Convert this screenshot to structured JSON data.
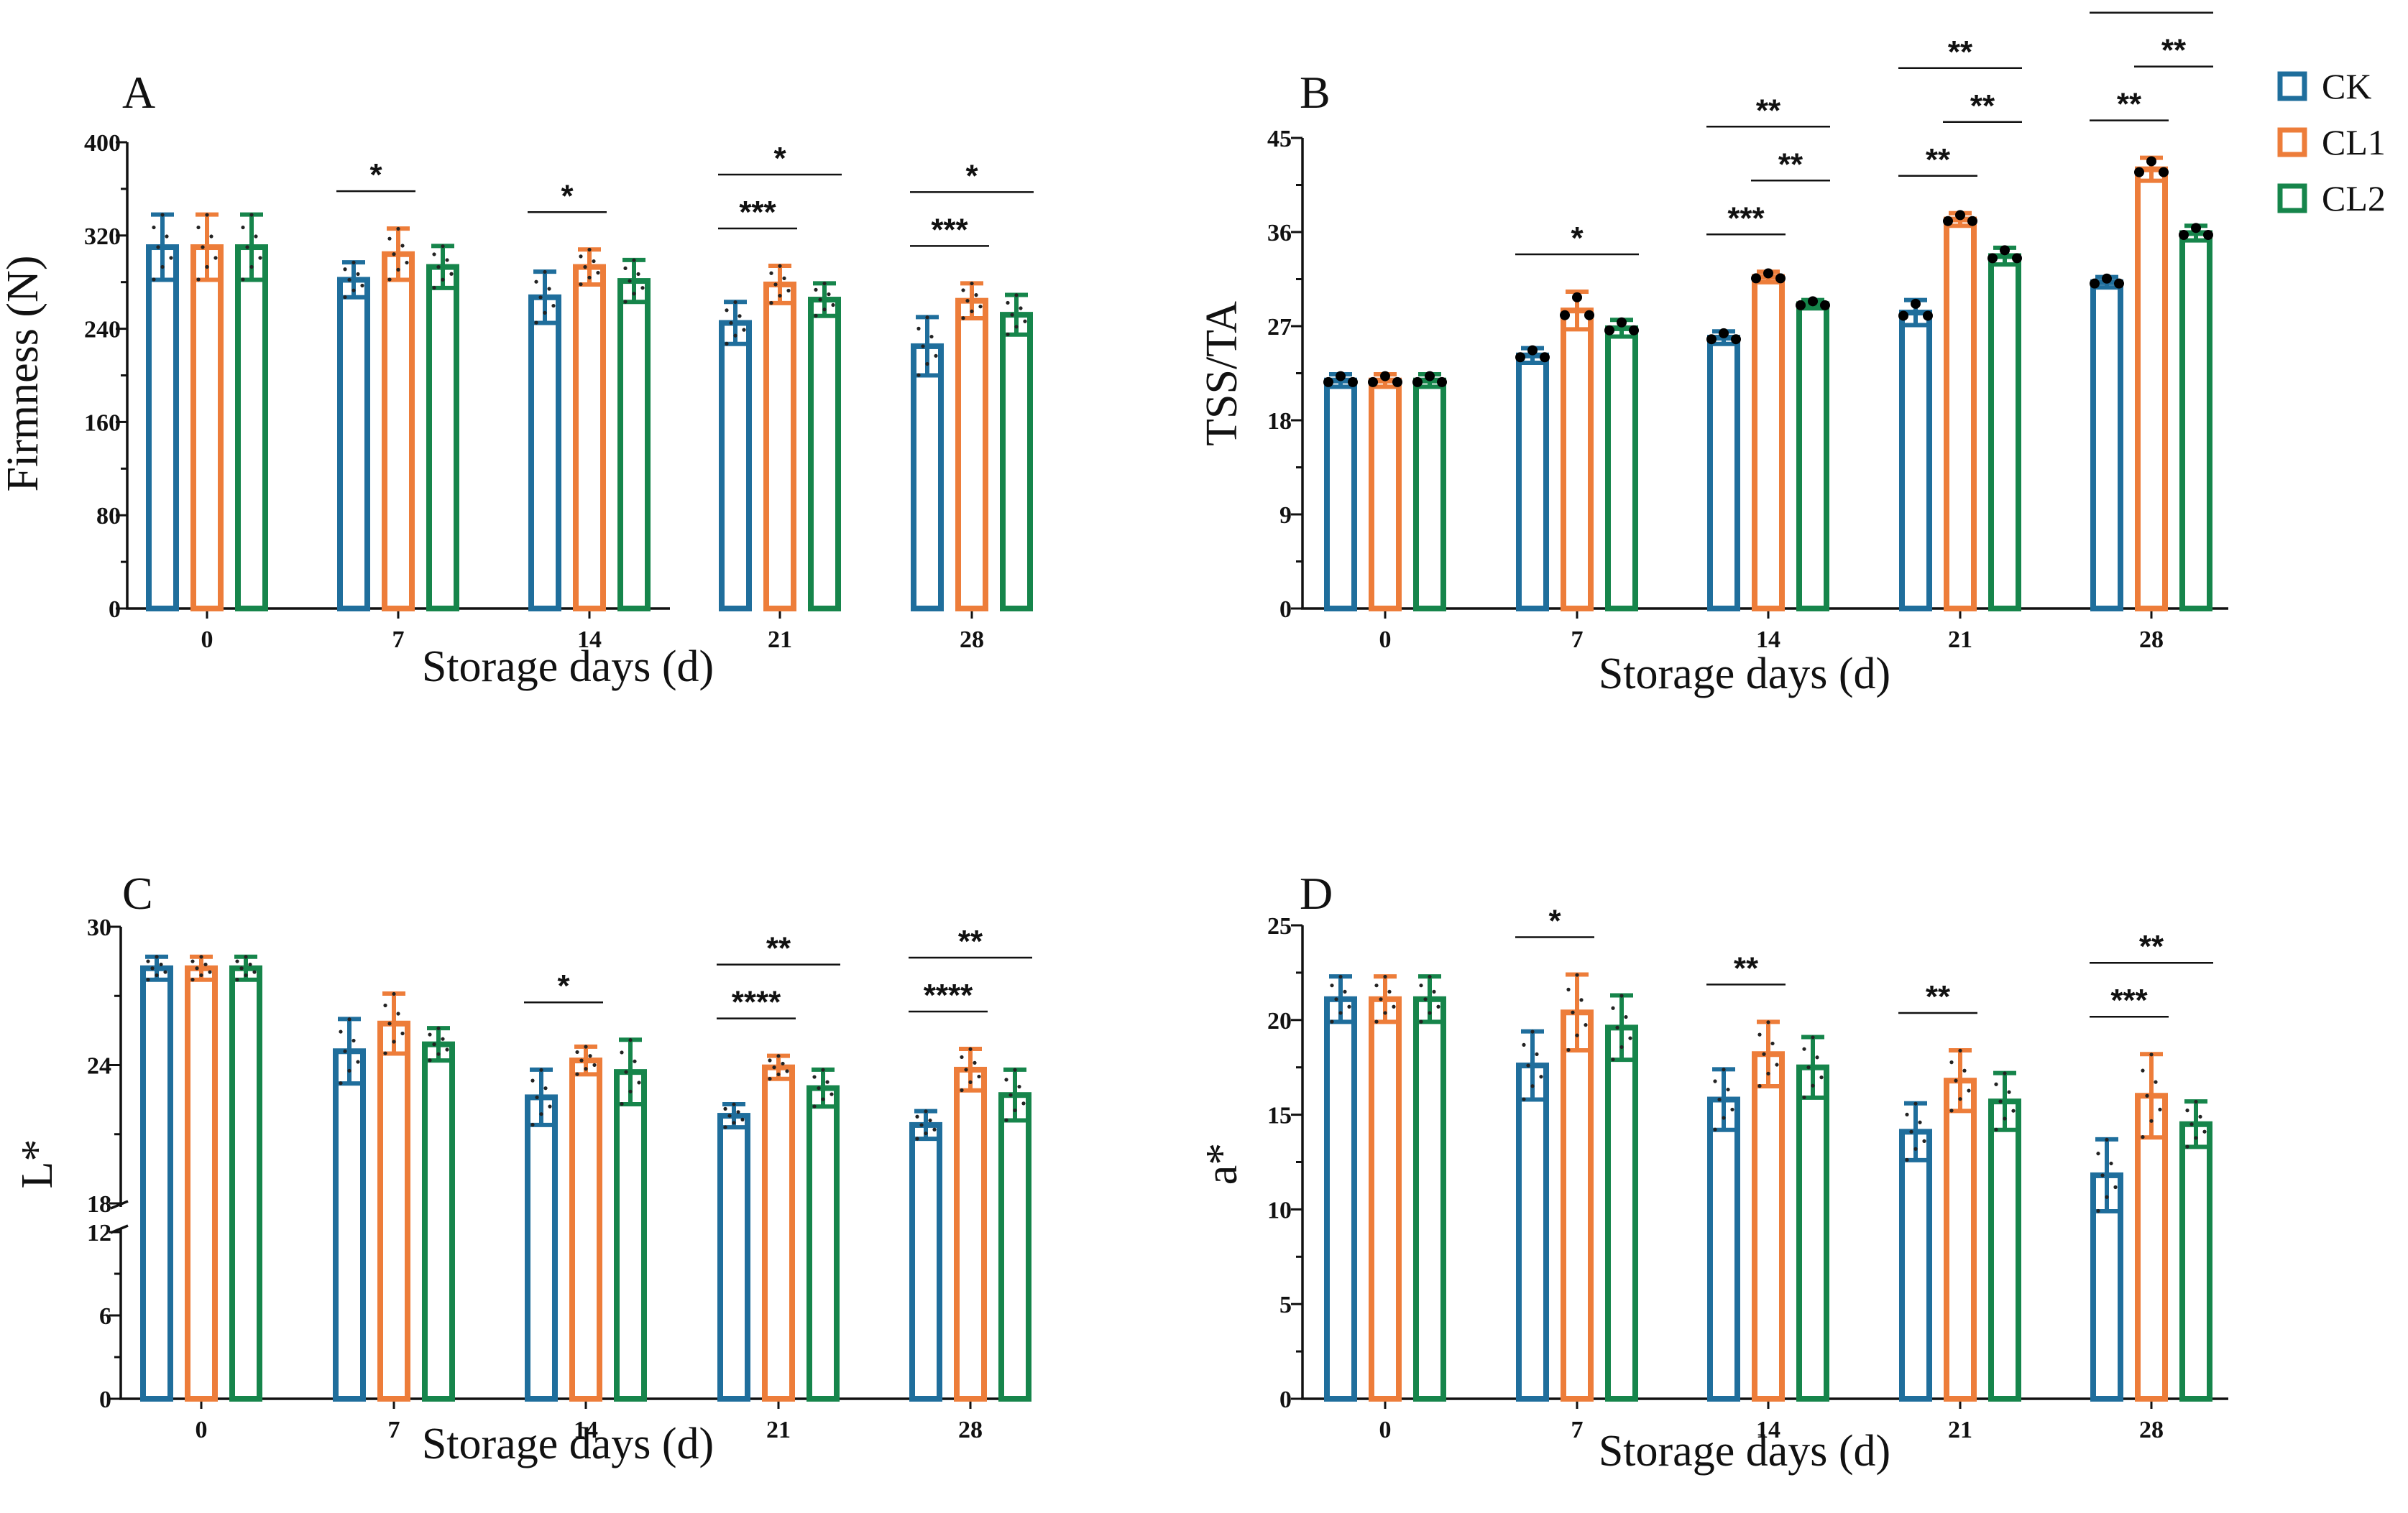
{
  "legend": [
    {
      "label": "CK",
      "color": "#1F6E9C"
    },
    {
      "label": "CL1",
      "color": "#ED7D3A"
    },
    {
      "label": "CL2",
      "color": "#16854B"
    }
  ],
  "chart_data": [
    {
      "panel": "A",
      "type": "bar",
      "xlabel": "Storage days (d)",
      "ylabel": "Firmness (N)",
      "categories": [
        "0",
        "7",
        "14",
        "21",
        "28"
      ],
      "ylim": [
        0,
        400
      ],
      "yticks": [
        0,
        80,
        160,
        240,
        320,
        400
      ],
      "series": [
        {
          "name": "CK",
          "values": [
            310,
            282,
            267,
            245,
            225
          ],
          "errors": [
            28,
            15,
            22,
            18,
            25
          ]
        },
        {
          "name": "CL1",
          "values": [
            310,
            304,
            293,
            278,
            264
          ],
          "errors": [
            28,
            22,
            15,
            16,
            15
          ]
        },
        {
          "name": "CL2",
          "values": [
            310,
            293,
            281,
            265,
            252
          ],
          "errors": [
            28,
            18,
            18,
            14,
            17
          ]
        }
      ],
      "significance": [
        {
          "label": "*",
          "from": 0,
          "to": 1,
          "cat": 1,
          "tier": 0
        },
        {
          "label": "*",
          "from": 0,
          "to": 1,
          "cat": 2,
          "tier": 0
        },
        {
          "label": "***",
          "from": 0,
          "to": 1,
          "cat": 3,
          "tier": 0
        },
        {
          "label": "*",
          "from": 0,
          "to": 2,
          "cat": 3,
          "tier": 1
        },
        {
          "label": "***",
          "from": 0,
          "to": 1,
          "cat": 4,
          "tier": 0
        },
        {
          "label": "*",
          "from": 0,
          "to": 2,
          "cat": 4,
          "tier": 1
        }
      ]
    },
    {
      "panel": "B",
      "type": "bar",
      "xlabel": "Storage days (d)",
      "ylabel": "TSS/TA",
      "categories": [
        "0",
        "7",
        "14",
        "21",
        "28"
      ],
      "ylim": [
        0,
        45
      ],
      "yticks": [
        0,
        9,
        18,
        27,
        36,
        45
      ],
      "series": [
        {
          "name": "CK",
          "values": [
            21.8,
            24.2,
            25.9,
            28.3,
            31.2
          ],
          "errors": [
            0.6,
            0.7,
            0.6,
            1.2,
            0.5
          ]
        },
        {
          "name": "CL1",
          "values": [
            21.8,
            28.5,
            31.7,
            37.2,
            42.0
          ],
          "errors": [
            0.6,
            1.8,
            0.5,
            0.6,
            1.1
          ]
        },
        {
          "name": "CL2",
          "values": [
            21.8,
            26.8,
            29.1,
            33.7,
            35.9
          ],
          "errors": [
            0.6,
            0.8,
            0.4,
            0.8,
            0.7
          ]
        }
      ],
      "significance": [
        {
          "label": "*",
          "from": 0,
          "to": 2,
          "cat": 1,
          "tier": 0
        },
        {
          "label": "***",
          "from": 0,
          "to": 1,
          "cat": 2,
          "tier": 0
        },
        {
          "label": "**",
          "from": 1,
          "to": 2,
          "cat": 2,
          "tier": 1
        },
        {
          "label": "**",
          "from": 0,
          "to": 2,
          "cat": 2,
          "tier": 2
        },
        {
          "label": "**",
          "from": 0,
          "to": 1,
          "cat": 3,
          "tier": 0
        },
        {
          "label": "**",
          "from": 1,
          "to": 2,
          "cat": 3,
          "tier": 1
        },
        {
          "label": "**",
          "from": 0,
          "to": 2,
          "cat": 3,
          "tier": 2
        },
        {
          "label": "**",
          "from": 0,
          "to": 1,
          "cat": 4,
          "tier": 0
        },
        {
          "label": "**",
          "from": 1,
          "to": 2,
          "cat": 4,
          "tier": 1
        },
        {
          "label": "**",
          "from": 0,
          "to": 2,
          "cat": 4,
          "tier": 2
        }
      ]
    },
    {
      "panel": "C",
      "type": "bar",
      "xlabel": "Storage days (d)",
      "ylabel": "L*",
      "categories": [
        "0",
        "7",
        "14",
        "21",
        "28"
      ],
      "axis_break": {
        "lower": [
          0,
          12
        ],
        "upper": [
          18,
          30
        ]
      },
      "yticks": [
        0,
        6,
        12,
        18,
        24,
        30
      ],
      "series": [
        {
          "name": "CK",
          "values": [
            28.2,
            24.6,
            22.6,
            21.8,
            21.4
          ],
          "errors": [
            0.5,
            1.4,
            1.2,
            0.5,
            0.6
          ]
        },
        {
          "name": "CL1",
          "values": [
            28.2,
            25.8,
            24.2,
            23.9,
            23.8
          ],
          "errors": [
            0.5,
            1.3,
            0.6,
            0.5,
            0.9
          ]
        },
        {
          "name": "CL2",
          "values": [
            28.2,
            24.9,
            23.7,
            23.0,
            22.7
          ],
          "errors": [
            0.5,
            0.7,
            1.4,
            0.8,
            1.1
          ]
        }
      ],
      "significance": [
        {
          "label": "*",
          "from": 0,
          "to": 1,
          "cat": 2,
          "tier": 0
        },
        {
          "label": "****",
          "from": 0,
          "to": 1,
          "cat": 3,
          "tier": 0
        },
        {
          "label": "**",
          "from": 0,
          "to": 2,
          "cat": 3,
          "tier": 1
        },
        {
          "label": "****",
          "from": 0,
          "to": 1,
          "cat": 4,
          "tier": 0
        },
        {
          "label": "**",
          "from": 0,
          "to": 2,
          "cat": 4,
          "tier": 1
        }
      ]
    },
    {
      "panel": "D",
      "type": "bar",
      "xlabel": "Storage days (d)",
      "ylabel": "a*",
      "categories": [
        "0",
        "7",
        "14",
        "21",
        "28"
      ],
      "ylim": [
        0,
        25
      ],
      "yticks": [
        0,
        5,
        10,
        15,
        20,
        25
      ],
      "series": [
        {
          "name": "CK",
          "values": [
            21.1,
            17.6,
            15.8,
            14.1,
            11.8
          ],
          "errors": [
            1.2,
            1.8,
            1.6,
            1.5,
            1.9
          ]
        },
        {
          "name": "CL1",
          "values": [
            21.1,
            20.4,
            18.2,
            16.8,
            16.0
          ],
          "errors": [
            1.2,
            2.0,
            1.7,
            1.6,
            2.2
          ]
        },
        {
          "name": "CL2",
          "values": [
            21.1,
            19.6,
            17.5,
            15.7,
            14.5
          ],
          "errors": [
            1.2,
            1.7,
            1.6,
            1.5,
            1.2
          ]
        }
      ],
      "significance": [
        {
          "label": "*",
          "from": 0,
          "to": 1,
          "cat": 1,
          "tier": 0
        },
        {
          "label": "**",
          "from": 0,
          "to": 1,
          "cat": 2,
          "tier": 0
        },
        {
          "label": "**",
          "from": 0,
          "to": 1,
          "cat": 3,
          "tier": 0
        },
        {
          "label": "***",
          "from": 0,
          "to": 1,
          "cat": 4,
          "tier": 0
        },
        {
          "label": "**",
          "from": 0,
          "to": 2,
          "cat": 4,
          "tier": 1
        }
      ]
    }
  ]
}
